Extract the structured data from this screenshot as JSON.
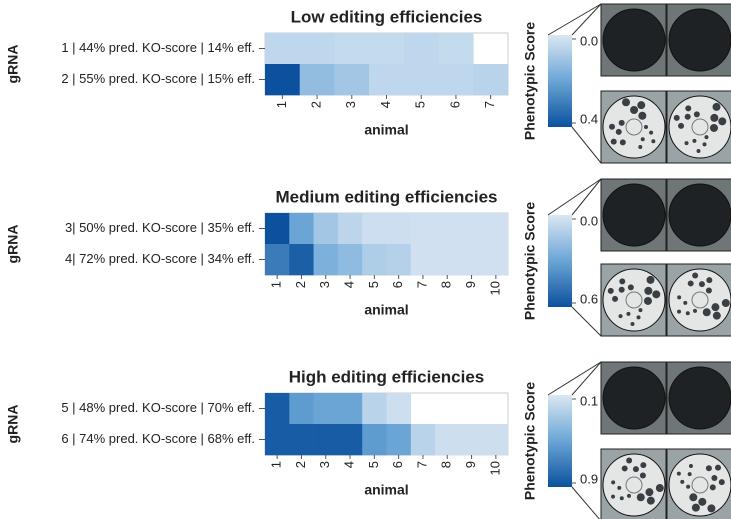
{
  "chart_data": [
    {
      "type": "heatmap",
      "title": "Low editing efficiencies",
      "ylabel": "gRNA",
      "xlabel": "animal",
      "categories": [
        "1",
        "2",
        "3",
        "4",
        "5",
        "6",
        "7"
      ],
      "rows": [
        "1 | 44% pred. KO-score | 14% eff.",
        "2 | 55% pred. KO-score | 15% eff."
      ],
      "values": [
        [
          0.05,
          0.05,
          0.04,
          0.04,
          0.05,
          0.04,
          null
        ],
        [
          0.4,
          0.13,
          0.1,
          0.05,
          0.05,
          0.05,
          0.06
        ]
      ],
      "colorbar_title": "Phenotypic Score",
      "clim": [
        0,
        0.4
      ],
      "cticks": [
        {
          "value": 0,
          "label": "0.0"
        },
        0.4
      ],
      "colormap": [
        "#dbe7f3",
        "#6aa5d6",
        "#0b519e"
      ]
    },
    {
      "type": "heatmap",
      "title": "Medium editing efficiencies",
      "ylabel": "gRNA",
      "xlabel": "animal",
      "categories": [
        "1",
        "2",
        "3",
        "4",
        "5",
        "6",
        "7",
        "8",
        "9",
        "10"
      ],
      "rows": [
        "3| 50% pred. KO-score | 35% eff.",
        "4| 72% pred. KO-score | 34% eff."
      ],
      "values": [
        [
          0.6,
          0.3,
          0.15,
          0.08,
          0.04,
          0.04,
          0.03,
          0.03,
          0.03,
          0.03
        ],
        [
          0.45,
          0.55,
          0.25,
          0.2,
          0.12,
          0.1,
          0.03,
          0.03,
          0.03,
          0.03
        ]
      ],
      "colorbar_title": "Phenotypic Score",
      "clim": [
        0,
        0.6
      ],
      "cticks": [
        {
          "value": 0,
          "label": "0.0"
        },
        0.6
      ],
      "colormap": [
        "#dbe7f3",
        "#6aa5d6",
        "#0b519e"
      ]
    },
    {
      "type": "heatmap",
      "title": "High editing efficiencies",
      "ylabel": "gRNA",
      "xlabel": "animal",
      "categories": [
        "1",
        "2",
        "3",
        "4",
        "5",
        "6",
        "7",
        "8",
        "9",
        "10"
      ],
      "rows": [
        "5 | 48% pred. KO-score | 70% eff.",
        "6 | 74% pred. KO-score | 68% eff."
      ],
      "values": [
        [
          0.85,
          0.55,
          0.5,
          0.5,
          0.22,
          0.15,
          null,
          null,
          null,
          null
        ],
        [
          0.85,
          0.85,
          0.85,
          0.85,
          0.55,
          0.5,
          0.22,
          0.15,
          0.15,
          0.15
        ]
      ],
      "colorbar_title": "Phenotypic Score",
      "clim": [
        0.1,
        0.9
      ],
      "cticks": [
        0.1,
        0.9
      ],
      "colormap": [
        "#dbe7f3",
        "#6aa5d6",
        "#0b519e"
      ]
    }
  ]
}
